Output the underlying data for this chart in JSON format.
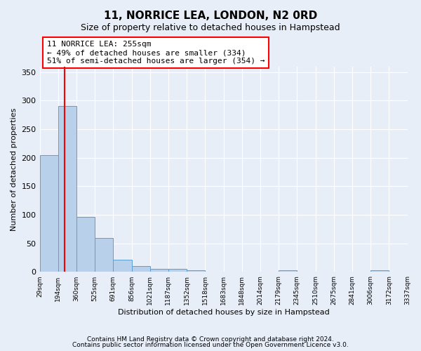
{
  "title": "11, NORRICE LEA, LONDON, N2 0RD",
  "subtitle": "Size of property relative to detached houses in Hampstead",
  "xlabel": "Distribution of detached houses by size in Hampstead",
  "ylabel": "Number of detached properties",
  "bar_heights": [
    205,
    291,
    97,
    60,
    21,
    11,
    6,
    5,
    3,
    1,
    0,
    0,
    0,
    3,
    0,
    0,
    0,
    0,
    3,
    0
  ],
  "all_labels": [
    "29sqm",
    "194sqm",
    "360sqm",
    "525sqm",
    "691sqm",
    "856sqm",
    "1021sqm",
    "1187sqm",
    "1352sqm",
    "1518sqm",
    "1683sqm",
    "1848sqm",
    "2014sqm",
    "2179sqm",
    "2345sqm",
    "2510sqm",
    "2675sqm",
    "2841sqm",
    "3006sqm",
    "3172sqm",
    "3337sqm"
  ],
  "bar_color": "#b8d0ea",
  "bar_edge_color": "#5a9fd4",
  "annotation_title": "11 NORRICE LEA: 255sqm",
  "annotation_line1": "← 49% of detached houses are smaller (334)",
  "annotation_line2": "51% of semi-detached houses are larger (354) →",
  "ylim": [
    0,
    360
  ],
  "yticks": [
    0,
    50,
    100,
    150,
    200,
    250,
    300,
    350
  ],
  "footer1": "Contains HM Land Registry data © Crown copyright and database right 2024.",
  "footer2": "Contains public sector information licensed under the Open Government Licence v3.0.",
  "background_color": "#e8eef8",
  "plot_bg_color": "#e8eef8"
}
